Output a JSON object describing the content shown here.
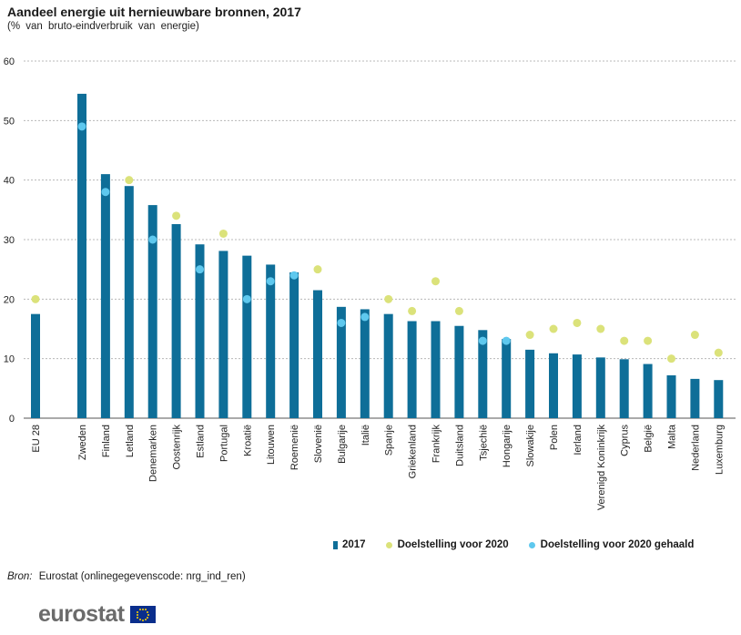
{
  "title": "Aandeel energie uit hernieuwbare bronnen, 2017",
  "subtitle": "(% van bruto-eindverbruik van energie)",
  "source_label": "Bron:",
  "source_text": "Eurostat (onlinegegevenscode: nrg_ind_ren)",
  "logo_text": "eurostat",
  "colors": {
    "bar": "#0e6e98",
    "target": "#dbe27a",
    "reached": "#5ec8ee",
    "grid": "#b8b8b8"
  },
  "legend": {
    "bar": "2017",
    "target": "Doelstelling voor 2020",
    "reached": "Doelstelling voor 2020 gehaald"
  },
  "chart_data": {
    "type": "bar",
    "title": "Aandeel energie uit hernieuwbare bronnen, 2017",
    "subtitle": "(% van bruto-eindverbruik van energie)",
    "ylim": [
      0,
      60
    ],
    "yticks": [
      0,
      10,
      20,
      30,
      40,
      50,
      60
    ],
    "grid": true,
    "legend_position": "bottom",
    "categories": [
      "EU 28",
      "Zweden",
      "Finland",
      "Letland",
      "Denemarken",
      "Oostenrijk",
      "Estland",
      "Portugal",
      "Kroatië",
      "Litouwen",
      "Roemenië",
      "Slovenië",
      "Bulgarije",
      "Italië",
      "Spanje",
      "Griekenland",
      "Frankrijk",
      "Duitsland",
      "Tsjechië",
      "Hongarije",
      "Slowakije",
      "Polen",
      "Ierland",
      "Verenigd Koninkrijk",
      "Cyprus",
      "België",
      "Malta",
      "Nederland",
      "Luxemburg"
    ],
    "series": [
      {
        "name": "2017",
        "kind": "bar",
        "values": [
          17.5,
          54.5,
          41.0,
          39.0,
          35.8,
          32.6,
          29.2,
          28.1,
          27.3,
          25.8,
          24.5,
          21.5,
          18.7,
          18.3,
          17.5,
          16.3,
          16.3,
          15.5,
          14.8,
          13.3,
          11.5,
          10.9,
          10.7,
          10.2,
          9.9,
          9.1,
          7.2,
          6.6,
          6.4
        ]
      },
      {
        "name": "Doelstelling voor 2020",
        "kind": "dot",
        "values": [
          20,
          null,
          null,
          40,
          null,
          34,
          null,
          31,
          null,
          null,
          null,
          25,
          null,
          null,
          20,
          18,
          23,
          18,
          null,
          null,
          14,
          15,
          16,
          15,
          13,
          13,
          10,
          14,
          11
        ]
      },
      {
        "name": "Doelstelling voor 2020 gehaald",
        "kind": "dot",
        "values": [
          null,
          49,
          38,
          null,
          30,
          null,
          25,
          null,
          20,
          23,
          24,
          null,
          16,
          17,
          null,
          null,
          null,
          null,
          13,
          13,
          null,
          null,
          null,
          null,
          null,
          null,
          null,
          null,
          null
        ]
      }
    ]
  }
}
